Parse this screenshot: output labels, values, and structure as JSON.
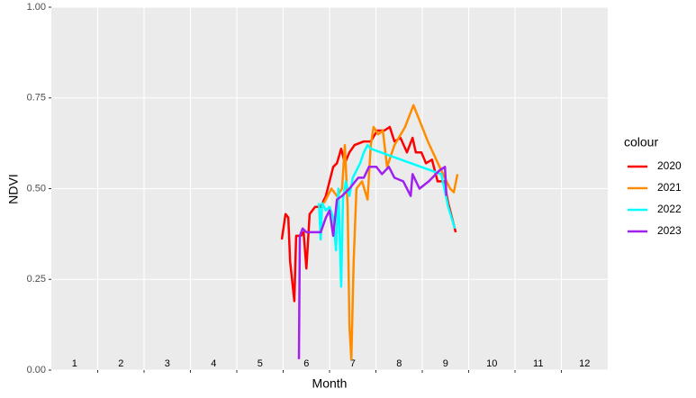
{
  "chart_data": {
    "type": "line",
    "x_label": "Month",
    "y_label": "NDVI",
    "legend_title": "colour",
    "categories": [
      "1",
      "2",
      "3",
      "4",
      "5",
      "6",
      "7",
      "8",
      "9",
      "10",
      "11",
      "12"
    ],
    "xlim": [
      0,
      12
    ],
    "xticks": [
      1,
      2,
      3,
      4,
      5,
      6,
      7,
      8,
      9,
      10,
      11
    ],
    "ylim": [
      0,
      1
    ],
    "yticks": [
      {
        "value": 0,
        "label": "0.00"
      },
      {
        "value": 0.25,
        "label": "0.25"
      },
      {
        "value": 0.5,
        "label": "0.50"
      },
      {
        "value": 0.75,
        "label": "0.75"
      },
      {
        "value": 1,
        "label": "1.00"
      }
    ],
    "grid": true,
    "series": [
      {
        "name": "2020",
        "color": "#ff0000",
        "x": [
          4.97,
          5.05,
          5.11,
          5.15,
          5.24,
          5.28,
          5.38,
          5.44,
          5.5,
          5.57,
          5.69,
          5.81,
          5.92,
          6.0,
          6.08,
          6.16,
          6.25,
          6.33,
          6.43,
          6.54,
          6.74,
          6.89,
          7.03,
          7.18,
          7.3,
          7.4,
          7.53,
          7.67,
          7.79,
          7.86,
          7.98,
          8.08,
          8.21,
          8.33,
          8.47,
          8.56,
          8.72
        ],
        "values": [
          0.36,
          0.43,
          0.42,
          0.3,
          0.19,
          0.37,
          0.37,
          0.38,
          0.28,
          0.43,
          0.45,
          0.45,
          0.48,
          0.52,
          0.56,
          0.57,
          0.61,
          0.57,
          0.6,
          0.62,
          0.63,
          0.63,
          0.66,
          0.66,
          0.67,
          0.63,
          0.64,
          0.6,
          0.64,
          0.6,
          0.6,
          0.57,
          0.58,
          0.52,
          0.52,
          0.46,
          0.38
        ]
      },
      {
        "name": "2021",
        "color": "#ff8c00",
        "x": [
          5.88,
          6.04,
          6.16,
          6.27,
          6.33,
          6.39,
          6.43,
          6.47,
          6.52,
          6.58,
          6.7,
          6.82,
          6.89,
          6.95,
          7.05,
          7.15,
          7.24,
          7.4,
          7.63,
          7.81,
          8.12,
          8.41,
          8.6,
          8.68,
          8.76
        ],
        "values": [
          0.46,
          0.5,
          0.48,
          0.5,
          0.62,
          0.45,
          0.12,
          0.03,
          0.3,
          0.5,
          0.52,
          0.47,
          0.62,
          0.67,
          0.65,
          0.66,
          0.56,
          0.62,
          0.67,
          0.73,
          0.63,
          0.55,
          0.5,
          0.49,
          0.54
        ]
      },
      {
        "name": "2022",
        "color": "#00ffff",
        "x": [
          5.77,
          5.81,
          5.84,
          5.92,
          6.0,
          6.08,
          6.14,
          6.19,
          6.25,
          6.29,
          6.35,
          6.43,
          6.5,
          6.58,
          6.66,
          6.74,
          6.82,
          6.89,
          8.41,
          8.56,
          8.7
        ],
        "values": [
          0.46,
          0.36,
          0.46,
          0.44,
          0.45,
          0.42,
          0.33,
          0.5,
          0.23,
          0.47,
          0.52,
          0.48,
          0.53,
          0.55,
          0.57,
          0.6,
          0.62,
          0.61,
          0.54,
          0.45,
          0.39
        ]
      },
      {
        "name": "2023",
        "color": "#a020f0",
        "x": [
          5.34,
          5.36,
          5.42,
          5.5,
          5.69,
          5.81,
          5.92,
          6.0,
          6.08,
          6.16,
          6.27,
          6.43,
          6.62,
          6.74,
          6.85,
          7.01,
          7.13,
          7.28,
          7.4,
          7.59,
          7.75,
          7.79,
          7.94,
          8.14,
          8.37,
          8.49,
          8.52
        ],
        "values": [
          0.03,
          0.37,
          0.39,
          0.38,
          0.38,
          0.38,
          0.42,
          0.44,
          0.37,
          0.47,
          0.48,
          0.5,
          0.53,
          0.53,
          0.56,
          0.56,
          0.54,
          0.56,
          0.53,
          0.52,
          0.48,
          0.54,
          0.5,
          0.52,
          0.55,
          0.56,
          0.48
        ]
      }
    ]
  }
}
